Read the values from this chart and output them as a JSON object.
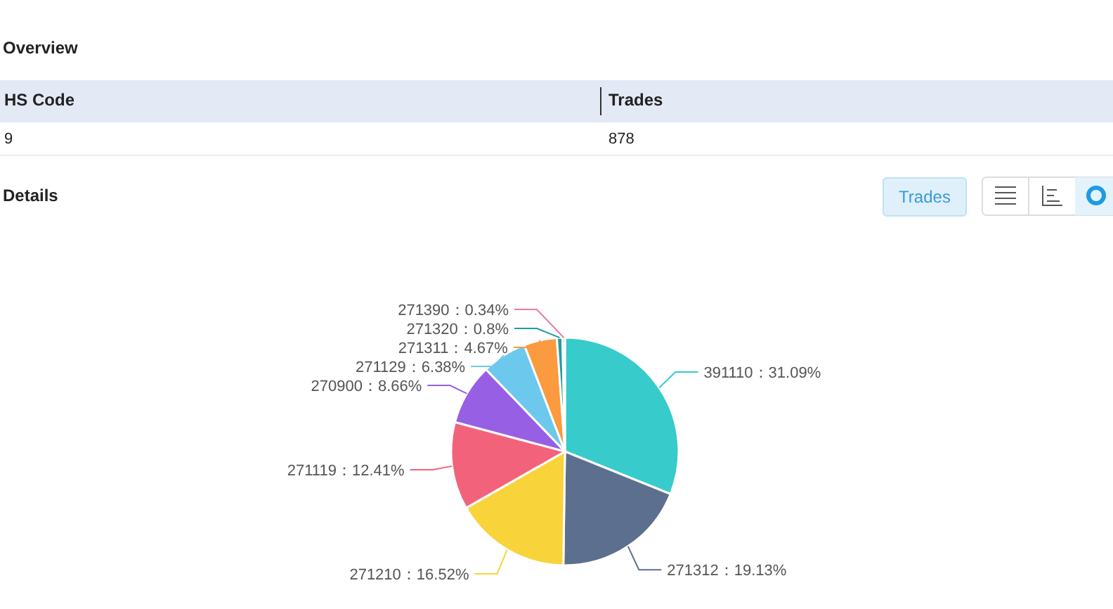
{
  "chart_data": [
    {
      "type": "other",
      "title": "Overview",
      "annotations": [
        "HS Code",
        "Trades",
        "9",
        "878"
      ]
    },
    {
      "type": "pie",
      "title": "Details",
      "annotations": [
        "Trades"
      ],
      "categories": [
        "391110",
        "271312",
        "271210",
        "271119",
        "270900",
        "271129",
        "271311",
        "271320",
        "271390"
      ],
      "values": [
        31.09,
        19.13,
        16.52,
        12.41,
        8.66,
        6.38,
        4.67,
        0.8,
        0.34
      ],
      "colors": [
        "#37cbcb",
        "#5d6f8f",
        "#f9d33a",
        "#f2637b",
        "#975fe4",
        "#6cc8ec",
        "#fb9a3e",
        "#1f9d9d",
        "#e67ca8"
      ],
      "value_labels": [
        "：31.09%",
        "：19.13%",
        "：16.52%",
        "：12.41%",
        "：8.66%",
        "：6.38%",
        "：4.67%",
        "：0.8%",
        "：0.34%"
      ]
    }
  ]
}
